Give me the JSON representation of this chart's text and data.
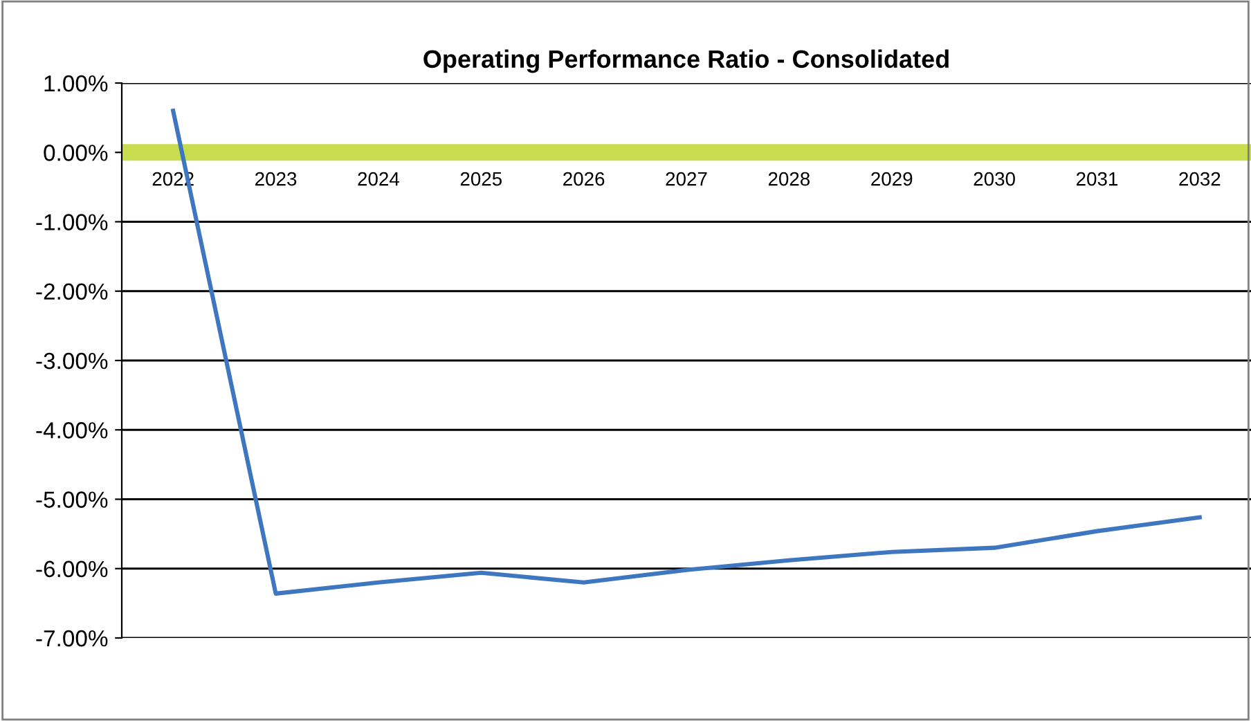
{
  "chart_data": {
    "type": "line",
    "title": "Operating Performance Ratio - Consolidated",
    "categories": [
      "2022",
      "2023",
      "2024",
      "2025",
      "2026",
      "2027",
      "2028",
      "2029",
      "2030",
      "2031",
      "2032"
    ],
    "series": [
      {
        "color": "#3f76c0",
        "values": [
          0.6,
          -6.36,
          -6.2,
          -6.06,
          -6.2,
          -6.02,
          -5.88,
          -5.76,
          -5.7,
          -5.46,
          -5.26
        ]
      }
    ],
    "ylim": [
      -7,
      1
    ],
    "yticks": [
      {
        "value": 1,
        "label": "1.00%"
      },
      {
        "value": 0,
        "label": "0.00%"
      },
      {
        "value": -1,
        "label": "-1.00%"
      },
      {
        "value": -2,
        "label": "-2.00%"
      },
      {
        "value": -3,
        "label": "-3.00%"
      },
      {
        "value": -4,
        "label": "-4.00%"
      },
      {
        "value": -5,
        "label": "-5.00%"
      },
      {
        "value": -6,
        "label": "-6.00%"
      },
      {
        "value": -7,
        "label": "-7.00%"
      }
    ],
    "grid": "y",
    "marker": "none",
    "line_style": "solid",
    "bands": [
      {
        "axis": "y",
        "from": -0.12,
        "to": 0.12,
        "color": "#c8dc50"
      }
    ]
  }
}
